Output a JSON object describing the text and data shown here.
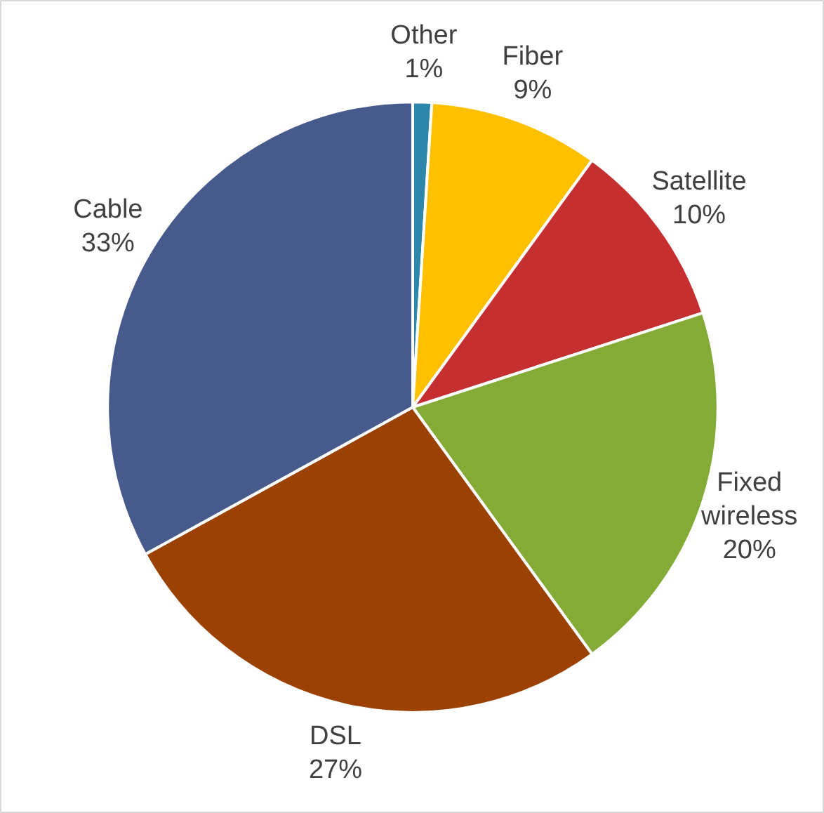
{
  "chart_data": {
    "type": "pie",
    "categories": [
      "Other",
      "Fiber",
      "Satellite",
      "Fixed wireless",
      "DSL",
      "Cable"
    ],
    "values": [
      1,
      9,
      10,
      20,
      27,
      33
    ],
    "colors": [
      "#2e86ab",
      "#ffc000",
      "#c52f30",
      "#84ab35",
      "#9a4103",
      "#465a8c"
    ],
    "value_labels": [
      "1%",
      "9%",
      "10%",
      "20%",
      "27%",
      "33%"
    ]
  }
}
